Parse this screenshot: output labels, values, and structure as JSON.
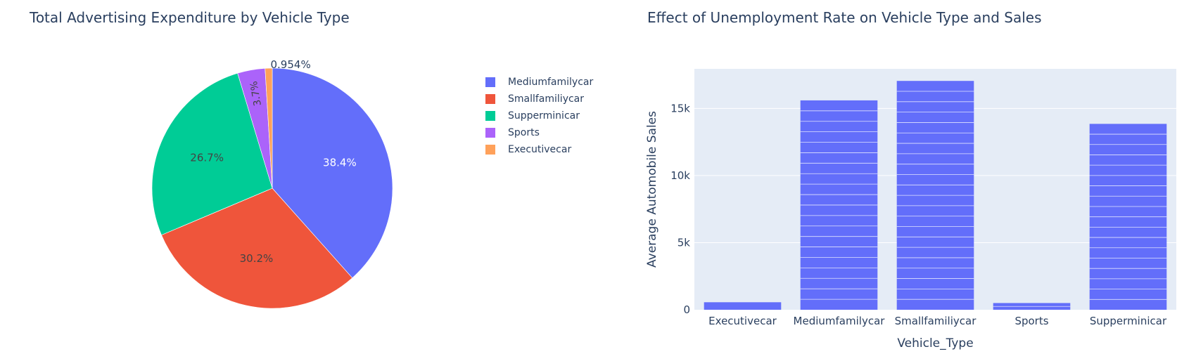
{
  "pie": {
    "title": "Total Advertising Expenditure by Vehicle Type",
    "chart_data": {
      "type": "pie",
      "labels": [
        "Mediumfamilycar",
        "Smallfamiliycar",
        "Supperminicar",
        "Sports",
        "Executivecar"
      ],
      "values": [
        38.4,
        30.2,
        26.7,
        3.7,
        0.954
      ],
      "value_labels": [
        "38.4%",
        "30.2%",
        "26.7%",
        "3.7%",
        "0.954%"
      ],
      "colors": [
        "#636efa",
        "#ef553b",
        "#00cc96",
        "#ab63fa",
        "#ffa15a"
      ],
      "legend": "right"
    }
  },
  "bar": {
    "title": "Effect of Unemployment Rate on Vehicle Type and Sales",
    "chart_data": {
      "type": "bar",
      "categories": [
        "Executivecar",
        "Mediumfamilycar",
        "Smallfamiliycar",
        "Sports",
        "Supperminicar"
      ],
      "values": [
        560,
        15600,
        17050,
        500,
        13850
      ],
      "segments": [
        1,
        20,
        22,
        2,
        18
      ],
      "xlabel": "Vehicle_Type",
      "ylabel": "Average Automobile Sales",
      "yticks": [
        0,
        5000,
        10000,
        15000
      ],
      "ytick_labels": [
        "0",
        "5k",
        "10k",
        "15k"
      ],
      "ylim": [
        0,
        17950
      ],
      "color": "#636efa",
      "plot_bg": "#e5ecf6",
      "grid": true
    }
  }
}
